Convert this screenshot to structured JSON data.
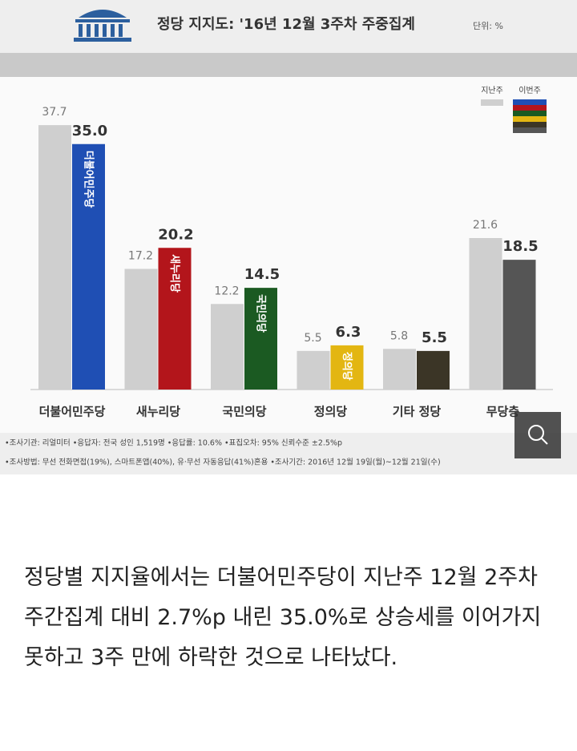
{
  "chart_data": {
    "type": "bar",
    "title": "정당 지지도: '16년 12월 3주차 주중집계",
    "unit": "단위: %",
    "categories": [
      "더불어민주당",
      "새누리당",
      "국민의당",
      "정의당",
      "기타 정당",
      "무당층"
    ],
    "series": [
      {
        "name": "지난주",
        "color": "#cfcfcf",
        "values": [
          37.7,
          17.2,
          12.2,
          5.5,
          5.8,
          21.6
        ]
      },
      {
        "name": "이번주",
        "colors": [
          "#1f4fb4",
          "#b3151b",
          "#1b5a22",
          "#e3b612",
          "#3b3526",
          "#555555"
        ],
        "values": [
          35.0,
          20.2,
          14.5,
          6.3,
          5.5,
          18.5
        ],
        "value_labels": [
          "35.0",
          "20.2",
          "14.5",
          "6.3",
          "5.5",
          "18.5"
        ],
        "bar_labels": [
          "더불어민주당",
          "새누리당",
          "국민의당",
          "정의당",
          null,
          null
        ]
      }
    ],
    "ylim": [
      0,
      40
    ],
    "footnotes": [
      "•조사기관: 리얼미터 •응답자: 전국 성인 1,519명 •응답률: 10.6% •표집오차: 95% 신뢰수준 ±2.5%p",
      "•조사방법: 무선 전화면접(19%), 스마트폰앱(40%), 유·무선 자동응답(41%)혼용 •조사기간: 2016년 12월 19일(월)~12월 21일(수)"
    ]
  },
  "article": {
    "paragraph": "정당별 지지율에서는 더불어민주당이 지난주 12월 2주차 주간집계 대비 2.7%p 내린 35.0%로 상승세를 이어가지 못하고 3주 만에 하락한 것으로 나타났다."
  }
}
